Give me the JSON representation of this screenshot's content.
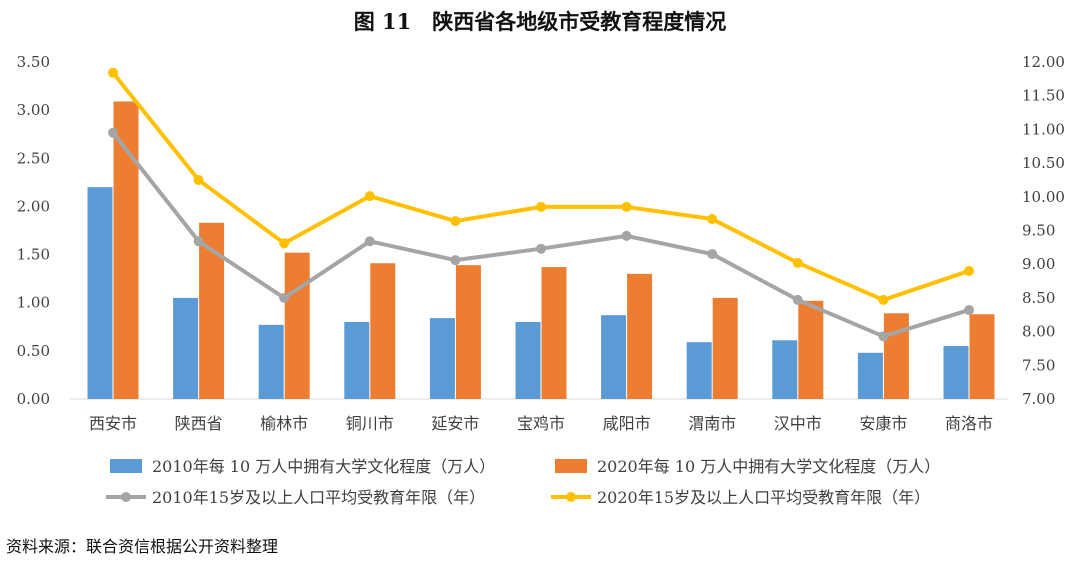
{
  "chart_data": {
    "type": "bar",
    "title": "图 11　陕西省各地级市受教育程度情况",
    "categories": [
      "西安市",
      "陕西省",
      "榆林市",
      "铜川市",
      "延安市",
      "宝鸡市",
      "咸阳市",
      "渭南市",
      "汉中市",
      "安康市",
      "商洛市"
    ],
    "left_axis": {
      "min": 0,
      "max": 3.5,
      "ticks": [
        "0.00",
        "0.50",
        "1.00",
        "1.50",
        "2.00",
        "2.50",
        "3.00",
        "3.50"
      ]
    },
    "right_axis": {
      "min": 7,
      "max": 12,
      "ticks": [
        "7.00",
        "7.50",
        "8.00",
        "8.50",
        "9.00",
        "9.50",
        "10.00",
        "10.50",
        "11.00",
        "11.50",
        "12.00"
      ]
    },
    "series": [
      {
        "name": "2010年每 10 万人中拥有大学文化程度（万人）",
        "type": "bar",
        "axis": "left",
        "color": "#5B9BD5",
        "values": [
          2.2,
          1.05,
          0.77,
          0.8,
          0.84,
          0.8,
          0.87,
          0.59,
          0.61,
          0.48,
          0.55
        ]
      },
      {
        "name": "2020年每 10 万人中拥有大学文化程度（万人）",
        "type": "bar",
        "axis": "left",
        "color": "#ED7D31",
        "values": [
          3.09,
          1.83,
          1.52,
          1.41,
          1.39,
          1.37,
          1.3,
          1.05,
          1.02,
          0.89,
          0.88
        ]
      },
      {
        "name": "2010年15岁及以上人口平均受教育年限（年）",
        "type": "line",
        "axis": "right",
        "color": "#A5A5A5",
        "values": [
          10.95,
          9.34,
          8.5,
          9.34,
          9.06,
          9.23,
          9.42,
          9.15,
          8.47,
          7.93,
          8.32
        ]
      },
      {
        "name": "2020年15岁及以上人口平均受教育年限（年）",
        "type": "line",
        "axis": "right",
        "color": "#FFC000",
        "values": [
          11.84,
          10.25,
          9.31,
          10.01,
          9.64,
          9.85,
          9.85,
          9.67,
          9.02,
          8.47,
          8.9
        ]
      }
    ],
    "grid": false,
    "legend": "bottom"
  },
  "source": "资料来源：联合资信根据公开资料整理"
}
